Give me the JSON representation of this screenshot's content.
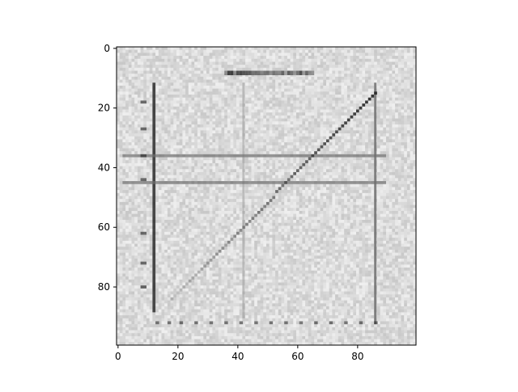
{
  "colors": {
    "frame": "#000000",
    "background": "#ffffff",
    "image_noise_low": "#cfcfcf",
    "image_noise_high": "#ececec",
    "ink_dark": "#2a2a2a",
    "ink_mid": "#6f6f6f",
    "ink_light": "#9a9a9a"
  },
  "chart_data": {
    "type": "heatmap",
    "title": "",
    "xlabel": "",
    "ylabel": "",
    "grid": false,
    "legend": "none",
    "image_shape": [
      100,
      100
    ],
    "colormap": "gray",
    "xlim": [
      -0.5,
      99.5
    ],
    "ylim": [
      99.5,
      -0.5
    ],
    "xticks": [
      0,
      20,
      40,
      60,
      80
    ],
    "xtick_labels": [
      "0",
      "20",
      "40",
      "60",
      "80"
    ],
    "yticks": [
      0,
      20,
      40,
      60,
      80
    ],
    "ytick_labels": [
      "0",
      "20",
      "40",
      "60",
      "80"
    ],
    "depicted_content": {
      "title_scribble": {
        "x": [
          36,
          65
        ],
        "y": 8
      },
      "vertical_lines": [
        {
          "x": 12,
          "y": [
            12,
            88
          ],
          "tone": "dark"
        },
        {
          "x": 42,
          "y": [
            12,
            90
          ],
          "tone": "light"
        },
        {
          "x": 86,
          "y": [
            12,
            92
          ],
          "tone": "mid"
        }
      ],
      "horizontal_lines": [
        {
          "y": 36,
          "x": [
            2,
            89
          ],
          "tone": "mid"
        },
        {
          "y": 45,
          "x": [
            2,
            89
          ],
          "tone": "mid"
        }
      ],
      "diagonal_line": {
        "from": [
          18,
          84
        ],
        "to": [
          86,
          15
        ],
        "tone": "dark"
      },
      "axis_tick_specks_x": [
        13,
        17,
        21,
        26,
        31,
        36,
        41,
        46,
        51,
        56,
        61,
        66,
        71,
        76,
        81,
        86
      ],
      "axis_tick_specks_y": [
        18,
        27,
        36,
        44,
        62,
        72,
        80
      ]
    }
  }
}
